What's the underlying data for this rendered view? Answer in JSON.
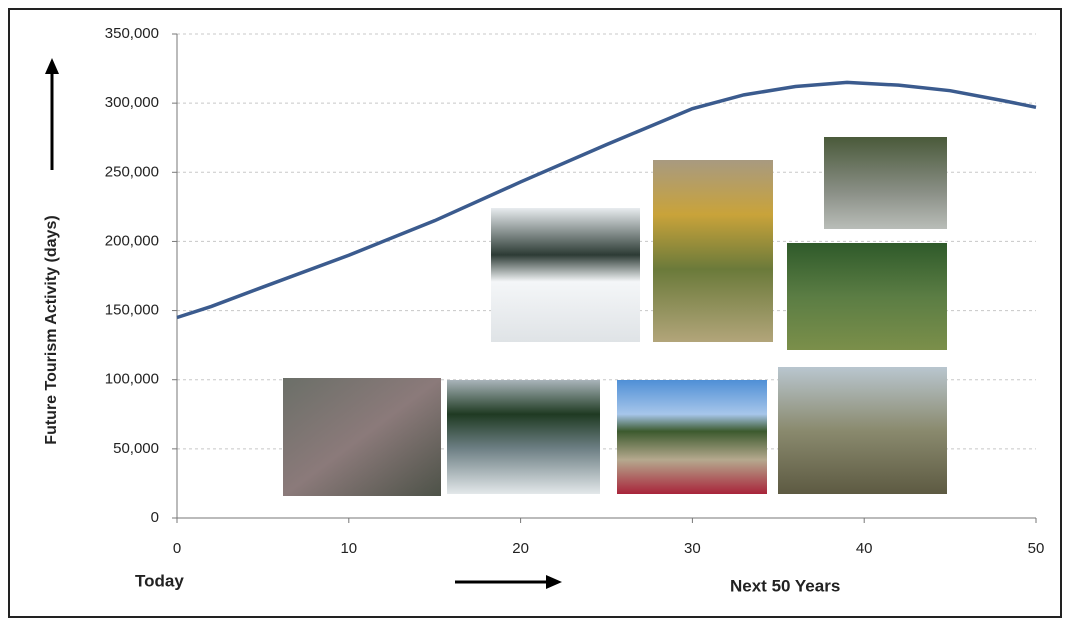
{
  "chart_data": {
    "type": "line",
    "y_label": "Future Tourism Activity (days)",
    "x_start_label": "Today",
    "x_end_label": "Next 50 Years",
    "x": [
      0,
      2,
      5,
      10,
      15,
      20,
      25,
      30,
      33,
      36,
      39,
      42,
      45,
      48,
      50
    ],
    "series": [
      {
        "name": "Tourism activity",
        "color": "#3b5b8e",
        "values": [
          145000,
          153000,
          167000,
          190000,
          215000,
          243000,
          270000,
          296000,
          306000,
          312000,
          315000,
          313000,
          309000,
          302000,
          297000
        ]
      }
    ],
    "xlim": [
      0,
      50
    ],
    "xticks": [
      0,
      10,
      20,
      30,
      40,
      50
    ],
    "ylim": [
      0,
      350000
    ],
    "yticks": [
      0,
      {
        "value": 50000,
        "label": "50,000"
      },
      {
        "value": 100000,
        "label": "100,000"
      },
      {
        "value": 150000,
        "label": "150,000"
      },
      {
        "value": 200000,
        "label": "200,000"
      },
      {
        "value": 250000,
        "label": "250,000"
      },
      {
        "value": 300000,
        "label": "300,000"
      },
      {
        "value": 350000,
        "label": "350,000"
      }
    ],
    "grid": true
  }
}
